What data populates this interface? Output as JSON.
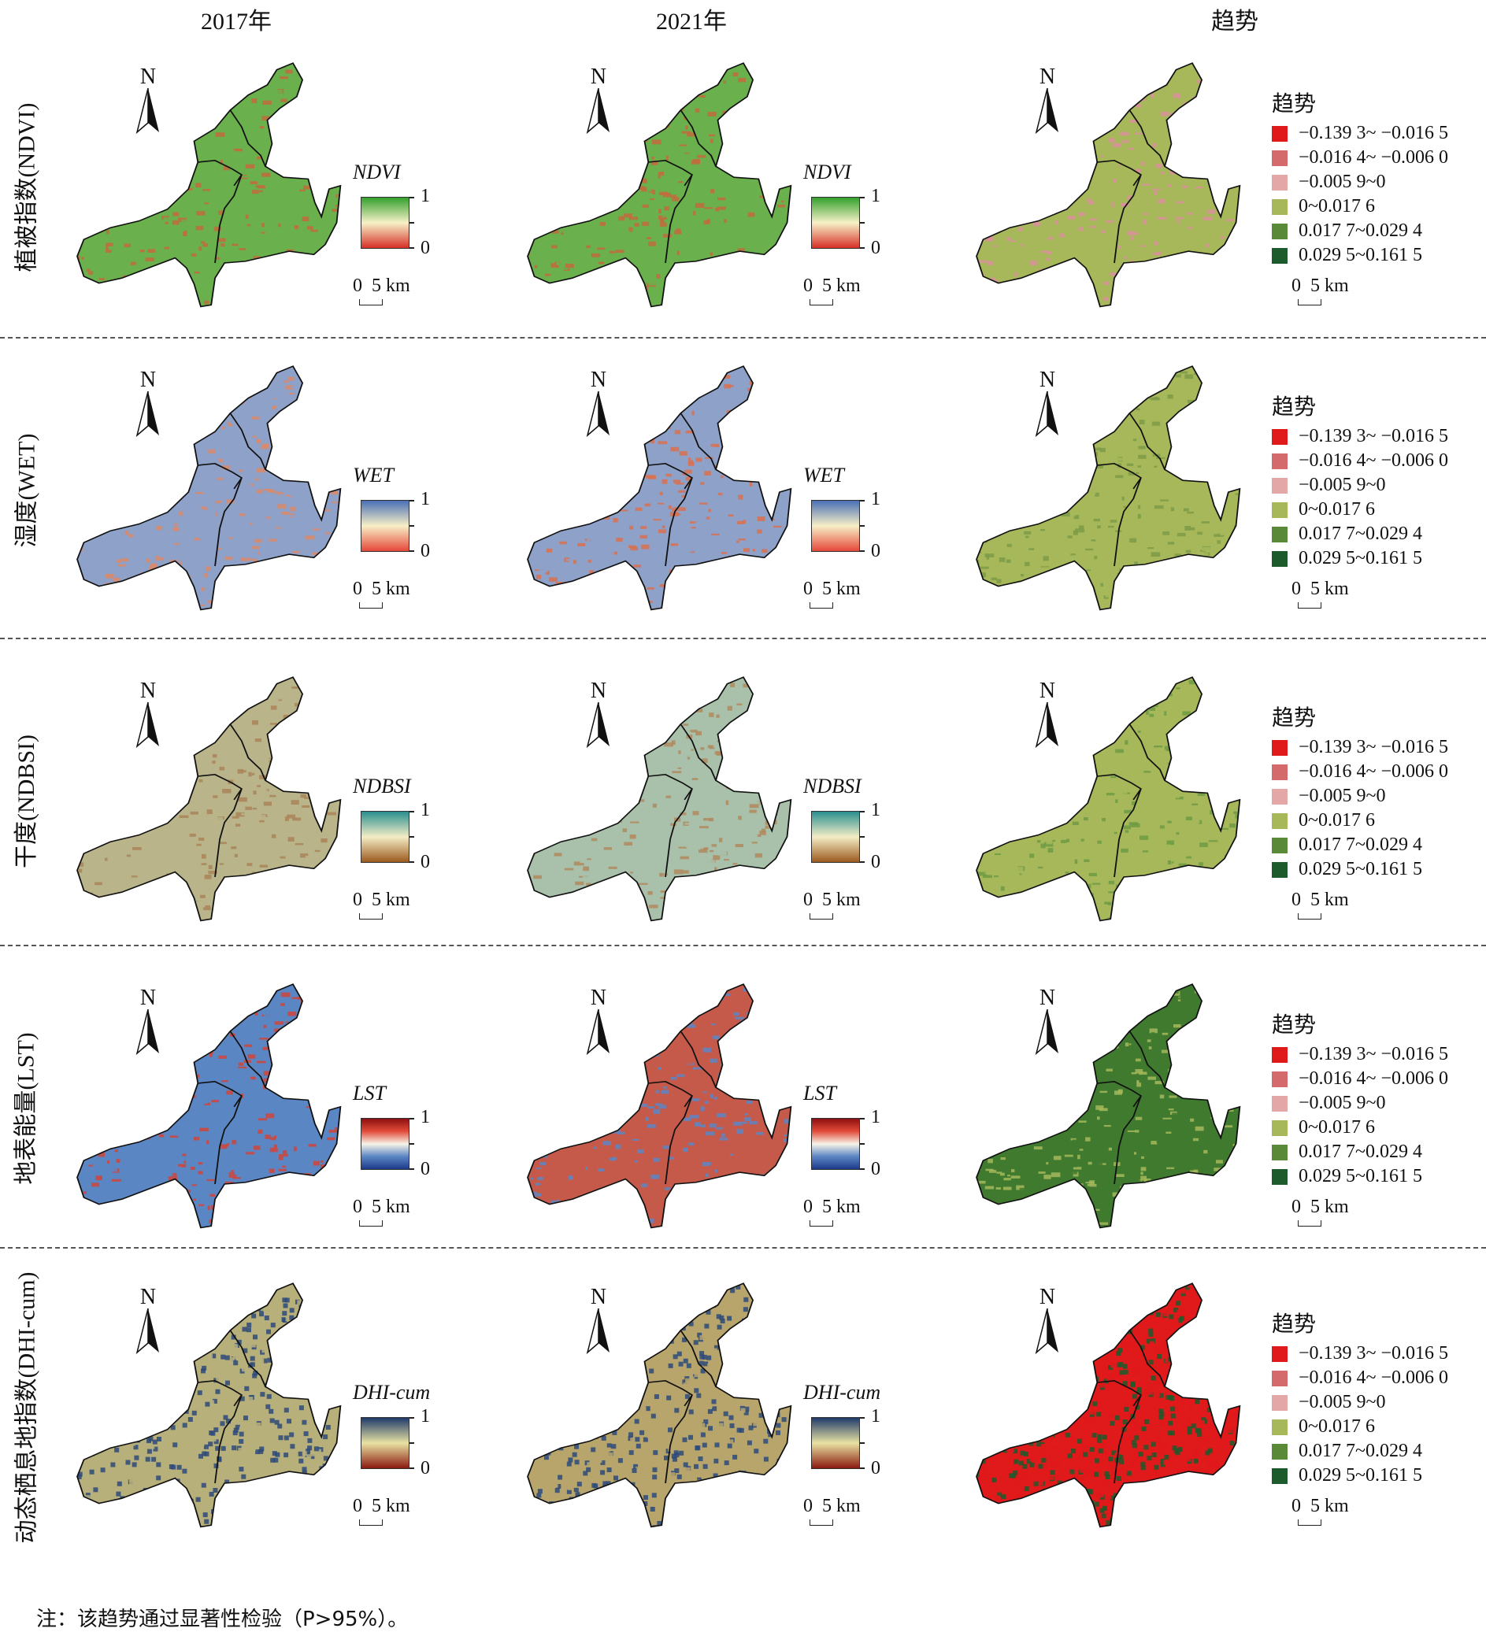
{
  "columns": [
    "2017年",
    "2021年",
    "趋势"
  ],
  "north_label": "N",
  "scale_label": "0  5 km",
  "legend": {
    "title": "趋势",
    "items": [
      {
        "label": "−0.139 3~ −0.016 5",
        "color": "#e0191b"
      },
      {
        "label": "−0.016 4~ −0.006 0",
        "color": "#d46a6c"
      },
      {
        "label": "−0.005 9~0",
        "color": "#e3a7a7"
      },
      {
        "label": "0~0.017 6",
        "color": "#a6b85a"
      },
      {
        "label": "0.017 7~0.029 4",
        "color": "#5a8a38"
      },
      {
        "label": "0.029 5~0.161 5",
        "color": "#1d5a2c"
      }
    ]
  },
  "rows": [
    {
      "label": "植被指数(NDVI)",
      "index": "NDVI",
      "max": "1",
      "min": "0",
      "ramp": [
        "#33a02c",
        "#f7f1c8",
        "#d73027"
      ],
      "map2017": [
        "#6ab04c",
        "#c26b3c"
      ],
      "map2021": [
        "#6ab04c",
        "#c26b3c"
      ],
      "trend": [
        "#a6b85a",
        "#d9909a"
      ]
    },
    {
      "label": "湿度(WET)",
      "index": "WET",
      "max": "1",
      "min": "0",
      "ramp": [
        "#4a6fb5",
        "#f7efc6",
        "#e5483a"
      ],
      "map2017": [
        "#8ea1c9",
        "#d98a6a"
      ],
      "map2021": [
        "#8ea1c9",
        "#d9704f"
      ],
      "trend": [
        "#a6b85a",
        "#7c9a48"
      ]
    },
    {
      "label": "干度(NDBSI)",
      "index": "NDBSI",
      "max": "1",
      "min": "0",
      "ramp": [
        "#2a8f8f",
        "#f3edc6",
        "#9c5a1e"
      ],
      "map2017": [
        "#b9b48a",
        "#a98459"
      ],
      "map2021": [
        "#a9c0aa",
        "#b08a5e"
      ],
      "trend": [
        "#a6b85a",
        "#6f9a44"
      ]
    },
    {
      "label": "地表能量(LST)",
      "index": "LST",
      "max": "1",
      "min": "0",
      "ramp": [
        "#8b1010",
        "#e24b3a",
        "#f7f4e8",
        "#5b86c4",
        "#1c3a8a"
      ],
      "map2017": [
        "#5b86c4",
        "#d0453a"
      ],
      "map2021": [
        "#c65a4a",
        "#5b86c4"
      ],
      "trend": [
        "#3f7a2f",
        "#a6b85a"
      ]
    },
    {
      "label": "动态栖息地指数(DHI-cum)",
      "index": "DHI-cum",
      "max": "1",
      "min": "0",
      "ramp": [
        "#1f3a6b",
        "#e8e2a2",
        "#8b1a10"
      ],
      "map2017": [
        "#b7b07a",
        "#2e4a7a"
      ],
      "map2021": [
        "#b7a56c",
        "#2e4a7a"
      ],
      "trend": [
        "#e0191b",
        "#1d5a2c"
      ]
    }
  ],
  "note": "注：该趋势通过显著性检验（P>95%）。"
}
